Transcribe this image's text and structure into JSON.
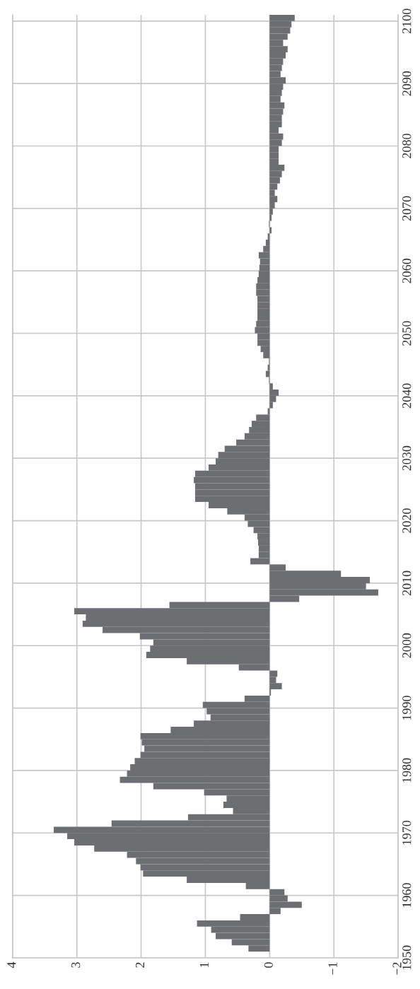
{
  "chart_data": {
    "type": "bar",
    "orientation": "horizontal",
    "color": "#6d6e71",
    "grid": true,
    "x": [
      1951,
      1952,
      1953,
      1954,
      1955,
      1956,
      1957,
      1958,
      1959,
      1960,
      1961,
      1962,
      1963,
      1964,
      1965,
      1966,
      1967,
      1968,
      1969,
      1970,
      1971,
      1972,
      1973,
      1974,
      1975,
      1976,
      1977,
      1978,
      1979,
      1980,
      1981,
      1982,
      1983,
      1984,
      1985,
      1986,
      1987,
      1988,
      1989,
      1990,
      1991,
      1992,
      1993,
      1994,
      1995,
      1996,
      1997,
      1998,
      1999,
      2000,
      2001,
      2002,
      2003,
      2004,
      2005,
      2006,
      2007,
      2008,
      2009,
      2010,
      2011,
      2012,
      2013,
      2014,
      2015,
      2016,
      2017,
      2018,
      2019,
      2020,
      2021,
      2022,
      2023,
      2024,
      2025,
      2026,
      2027,
      2028,
      2029,
      2030,
      2031,
      2032,
      2033,
      2034,
      2035,
      2036,
      2037,
      2038,
      2039,
      2040,
      2041,
      2042,
      2043,
      2044,
      2045,
      2046,
      2047,
      2048,
      2049,
      2050,
      2051,
      2052,
      2053,
      2054,
      2055,
      2056,
      2057,
      2058,
      2059,
      2060,
      2061,
      2062,
      2063,
      2064,
      2065,
      2066,
      2067,
      2068,
      2069,
      2070,
      2071,
      2072,
      2073,
      2074,
      2075,
      2076,
      2077,
      2078,
      2079,
      2080,
      2081,
      2082,
      2083,
      2084,
      2085,
      2086,
      2087,
      2088,
      2089,
      2090,
      2091,
      2092,
      2093,
      2094,
      2095,
      2096,
      2097,
      2098,
      2099,
      2100
    ],
    "values": [
      0.33,
      0.59,
      0.84,
      0.91,
      1.13,
      0.46,
      -0.17,
      -0.5,
      -0.28,
      -0.23,
      0.37,
      1.29,
      1.97,
      2.01,
      2.08,
      2.22,
      2.73,
      3.04,
      3.15,
      3.36,
      2.46,
      1.27,
      0.57,
      0.72,
      0.67,
      1.02,
      1.81,
      2.33,
      2.22,
      2.17,
      2.1,
      2.01,
      1.95,
      1.99,
      2.01,
      1.54,
      1.18,
      0.92,
      0.98,
      1.04,
      0.39,
      -0.02,
      -0.19,
      -0.1,
      -0.12,
      0.48,
      1.29,
      1.92,
      1.86,
      1.81,
      2.02,
      2.6,
      2.91,
      2.86,
      3.04,
      1.56,
      -0.46,
      -1.69,
      -1.5,
      -1.56,
      -1.11,
      -0.25,
      0.3,
      0.17,
      0.17,
      0.18,
      0.19,
      0.25,
      0.34,
      0.39,
      0.66,
      0.95,
      1.16,
      1.16,
      1.16,
      1.18,
      1.16,
      0.95,
      0.84,
      0.8,
      0.7,
      0.52,
      0.39,
      0.32,
      0.28,
      0.21,
      0.03,
      -0.05,
      -0.1,
      -0.14,
      -0.05,
      0.01,
      0.06,
      0.03,
      0.01,
      0.1,
      0.14,
      0.19,
      0.19,
      0.23,
      0.21,
      0.19,
      0.19,
      0.19,
      0.19,
      0.21,
      0.21,
      0.19,
      0.17,
      0.16,
      0.15,
      0.17,
      0.1,
      0.06,
      0.03,
      -0.03,
      0.01,
      -0.03,
      -0.05,
      -0.08,
      -0.12,
      -0.08,
      -0.12,
      -0.16,
      -0.19,
      -0.23,
      -0.14,
      -0.14,
      -0.14,
      -0.19,
      -0.21,
      -0.14,
      -0.19,
      -0.19,
      -0.21,
      -0.23,
      -0.17,
      -0.19,
      -0.21,
      -0.25,
      -0.17,
      -0.19,
      -0.21,
      -0.25,
      -0.28,
      -0.21,
      -0.28,
      -0.32,
      -0.34,
      -0.39
    ],
    "xlim": [
      4,
      -2
    ],
    "xticks": [
      4,
      3,
      2,
      1,
      0,
      {
        "value": -1,
        "label": "−1"
      },
      {
        "value": -2,
        "label": "−2"
      }
    ],
    "ylim": [
      1950,
      2101
    ],
    "yticks": [
      1950,
      1960,
      1970,
      1980,
      1990,
      2000,
      2010,
      2020,
      2030,
      2040,
      2050,
      2060,
      2070,
      2080,
      2090,
      2100
    ]
  }
}
